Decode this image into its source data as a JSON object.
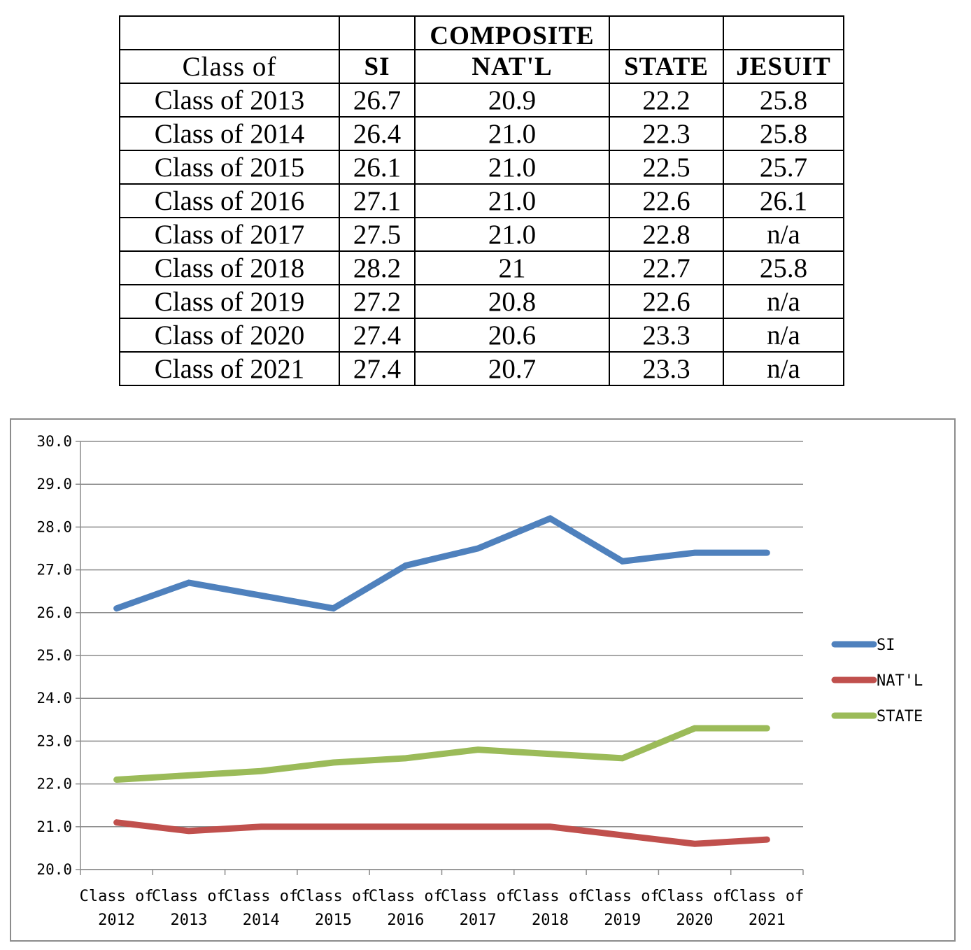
{
  "table": {
    "header_top": [
      "",
      "",
      "COMPOSITE",
      "",
      ""
    ],
    "header": [
      "Class of",
      "SI",
      "NAT'L",
      "STATE",
      "JESUIT"
    ],
    "rows": [
      [
        "Class of 2013",
        "26.7",
        "20.9",
        "22.2",
        "25.8"
      ],
      [
        "Class of 2014",
        "26.4",
        "21.0",
        "22.3",
        "25.8"
      ],
      [
        "Class of 2015",
        "26.1",
        "21.0",
        "22.5",
        "25.7"
      ],
      [
        "Class of 2016",
        "27.1",
        "21.0",
        "22.6",
        "26.1"
      ],
      [
        "Class of 2017",
        "27.5",
        "21.0",
        "22.8",
        "n/a"
      ],
      [
        "Class of 2018",
        "28.2",
        "21",
        "22.7",
        "25.8"
      ],
      [
        "Class of 2019",
        "27.2",
        "20.8",
        "22.6",
        "n/a"
      ],
      [
        "Class of 2020",
        "27.4",
        "20.6",
        "23.3",
        "n/a"
      ],
      [
        "Class of 2021",
        "27.4",
        "20.7",
        "23.3",
        "n/a"
      ]
    ]
  },
  "chart_data": {
    "type": "line",
    "title": "",
    "xlabel": "",
    "ylabel": "",
    "categories": [
      [
        "Class of",
        "2012"
      ],
      [
        "Class of",
        "2013"
      ],
      [
        "Class of",
        "2014"
      ],
      [
        "Class of",
        "2015"
      ],
      [
        "Class of",
        "2016"
      ],
      [
        "Class of",
        "2017"
      ],
      [
        "Class of",
        "2018"
      ],
      [
        "Class of",
        "2019"
      ],
      [
        "Class of",
        "2020"
      ],
      [
        "Class of",
        "2021"
      ]
    ],
    "ylim": [
      20.0,
      30.0
    ],
    "ytick_step": 1.0,
    "yticks": [
      "20.0",
      "21.0",
      "22.0",
      "23.0",
      "24.0",
      "25.0",
      "26.0",
      "27.0",
      "28.0",
      "29.0",
      "30.0"
    ],
    "grid": true,
    "legend_position": "right",
    "series": [
      {
        "name": "SI",
        "color": "#4f81bd",
        "values": [
          26.1,
          26.7,
          26.4,
          26.1,
          27.1,
          27.5,
          28.2,
          27.2,
          27.4,
          27.4
        ]
      },
      {
        "name": "NAT'L",
        "color": "#c0504d",
        "values": [
          21.1,
          20.9,
          21.0,
          21.0,
          21.0,
          21.0,
          21.0,
          20.8,
          20.6,
          20.7
        ]
      },
      {
        "name": "STATE",
        "color": "#9bbb59",
        "values": [
          22.1,
          22.2,
          22.3,
          22.5,
          22.6,
          22.8,
          22.7,
          22.6,
          23.3,
          23.3
        ]
      }
    ]
  }
}
